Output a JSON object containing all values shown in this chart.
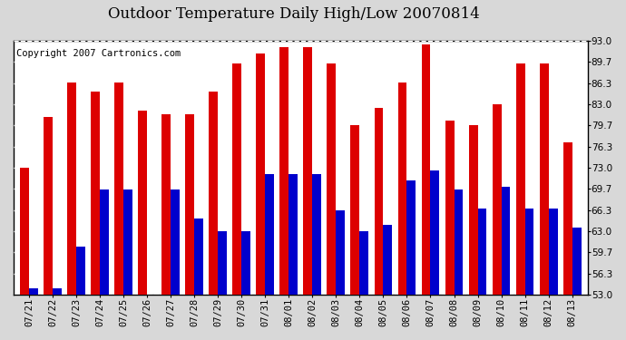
{
  "title": "Outdoor Temperature Daily High/Low 20070814",
  "copyright": "Copyright 2007 Cartronics.com",
  "dates": [
    "07/21",
    "07/22",
    "07/23",
    "07/24",
    "07/25",
    "07/26",
    "07/27",
    "07/28",
    "07/29",
    "07/30",
    "07/31",
    "08/01",
    "08/02",
    "08/03",
    "08/04",
    "08/05",
    "08/06",
    "08/07",
    "08/08",
    "08/09",
    "08/10",
    "08/11",
    "08/12",
    "08/13"
  ],
  "highs": [
    73.0,
    81.0,
    86.5,
    85.0,
    86.5,
    82.0,
    81.5,
    81.5,
    85.0,
    89.5,
    91.0,
    92.0,
    92.0,
    89.5,
    79.7,
    82.5,
    86.5,
    92.5,
    80.5,
    79.7,
    83.0,
    89.5,
    89.5,
    77.0
  ],
  "lows": [
    54.0,
    54.0,
    60.5,
    69.5,
    69.5,
    53.0,
    69.5,
    65.0,
    63.0,
    63.0,
    72.0,
    72.0,
    72.0,
    66.3,
    63.0,
    64.0,
    71.0,
    72.5,
    69.5,
    66.5,
    70.0,
    66.5,
    66.5,
    63.5
  ],
  "high_color": "#dd0000",
  "low_color": "#0000cc",
  "background_color": "#d8d8d8",
  "plot_bg_color": "#ffffff",
  "grid_color": "#aaaaaa",
  "ymin": 53.0,
  "ymax": 93.0,
  "yticks": [
    53.0,
    56.3,
    59.7,
    63.0,
    66.3,
    69.7,
    73.0,
    76.3,
    79.7,
    83.0,
    86.3,
    89.7,
    93.0
  ],
  "bar_width": 0.38,
  "title_fontsize": 12,
  "tick_fontsize": 7.5,
  "copyright_fontsize": 7.5
}
